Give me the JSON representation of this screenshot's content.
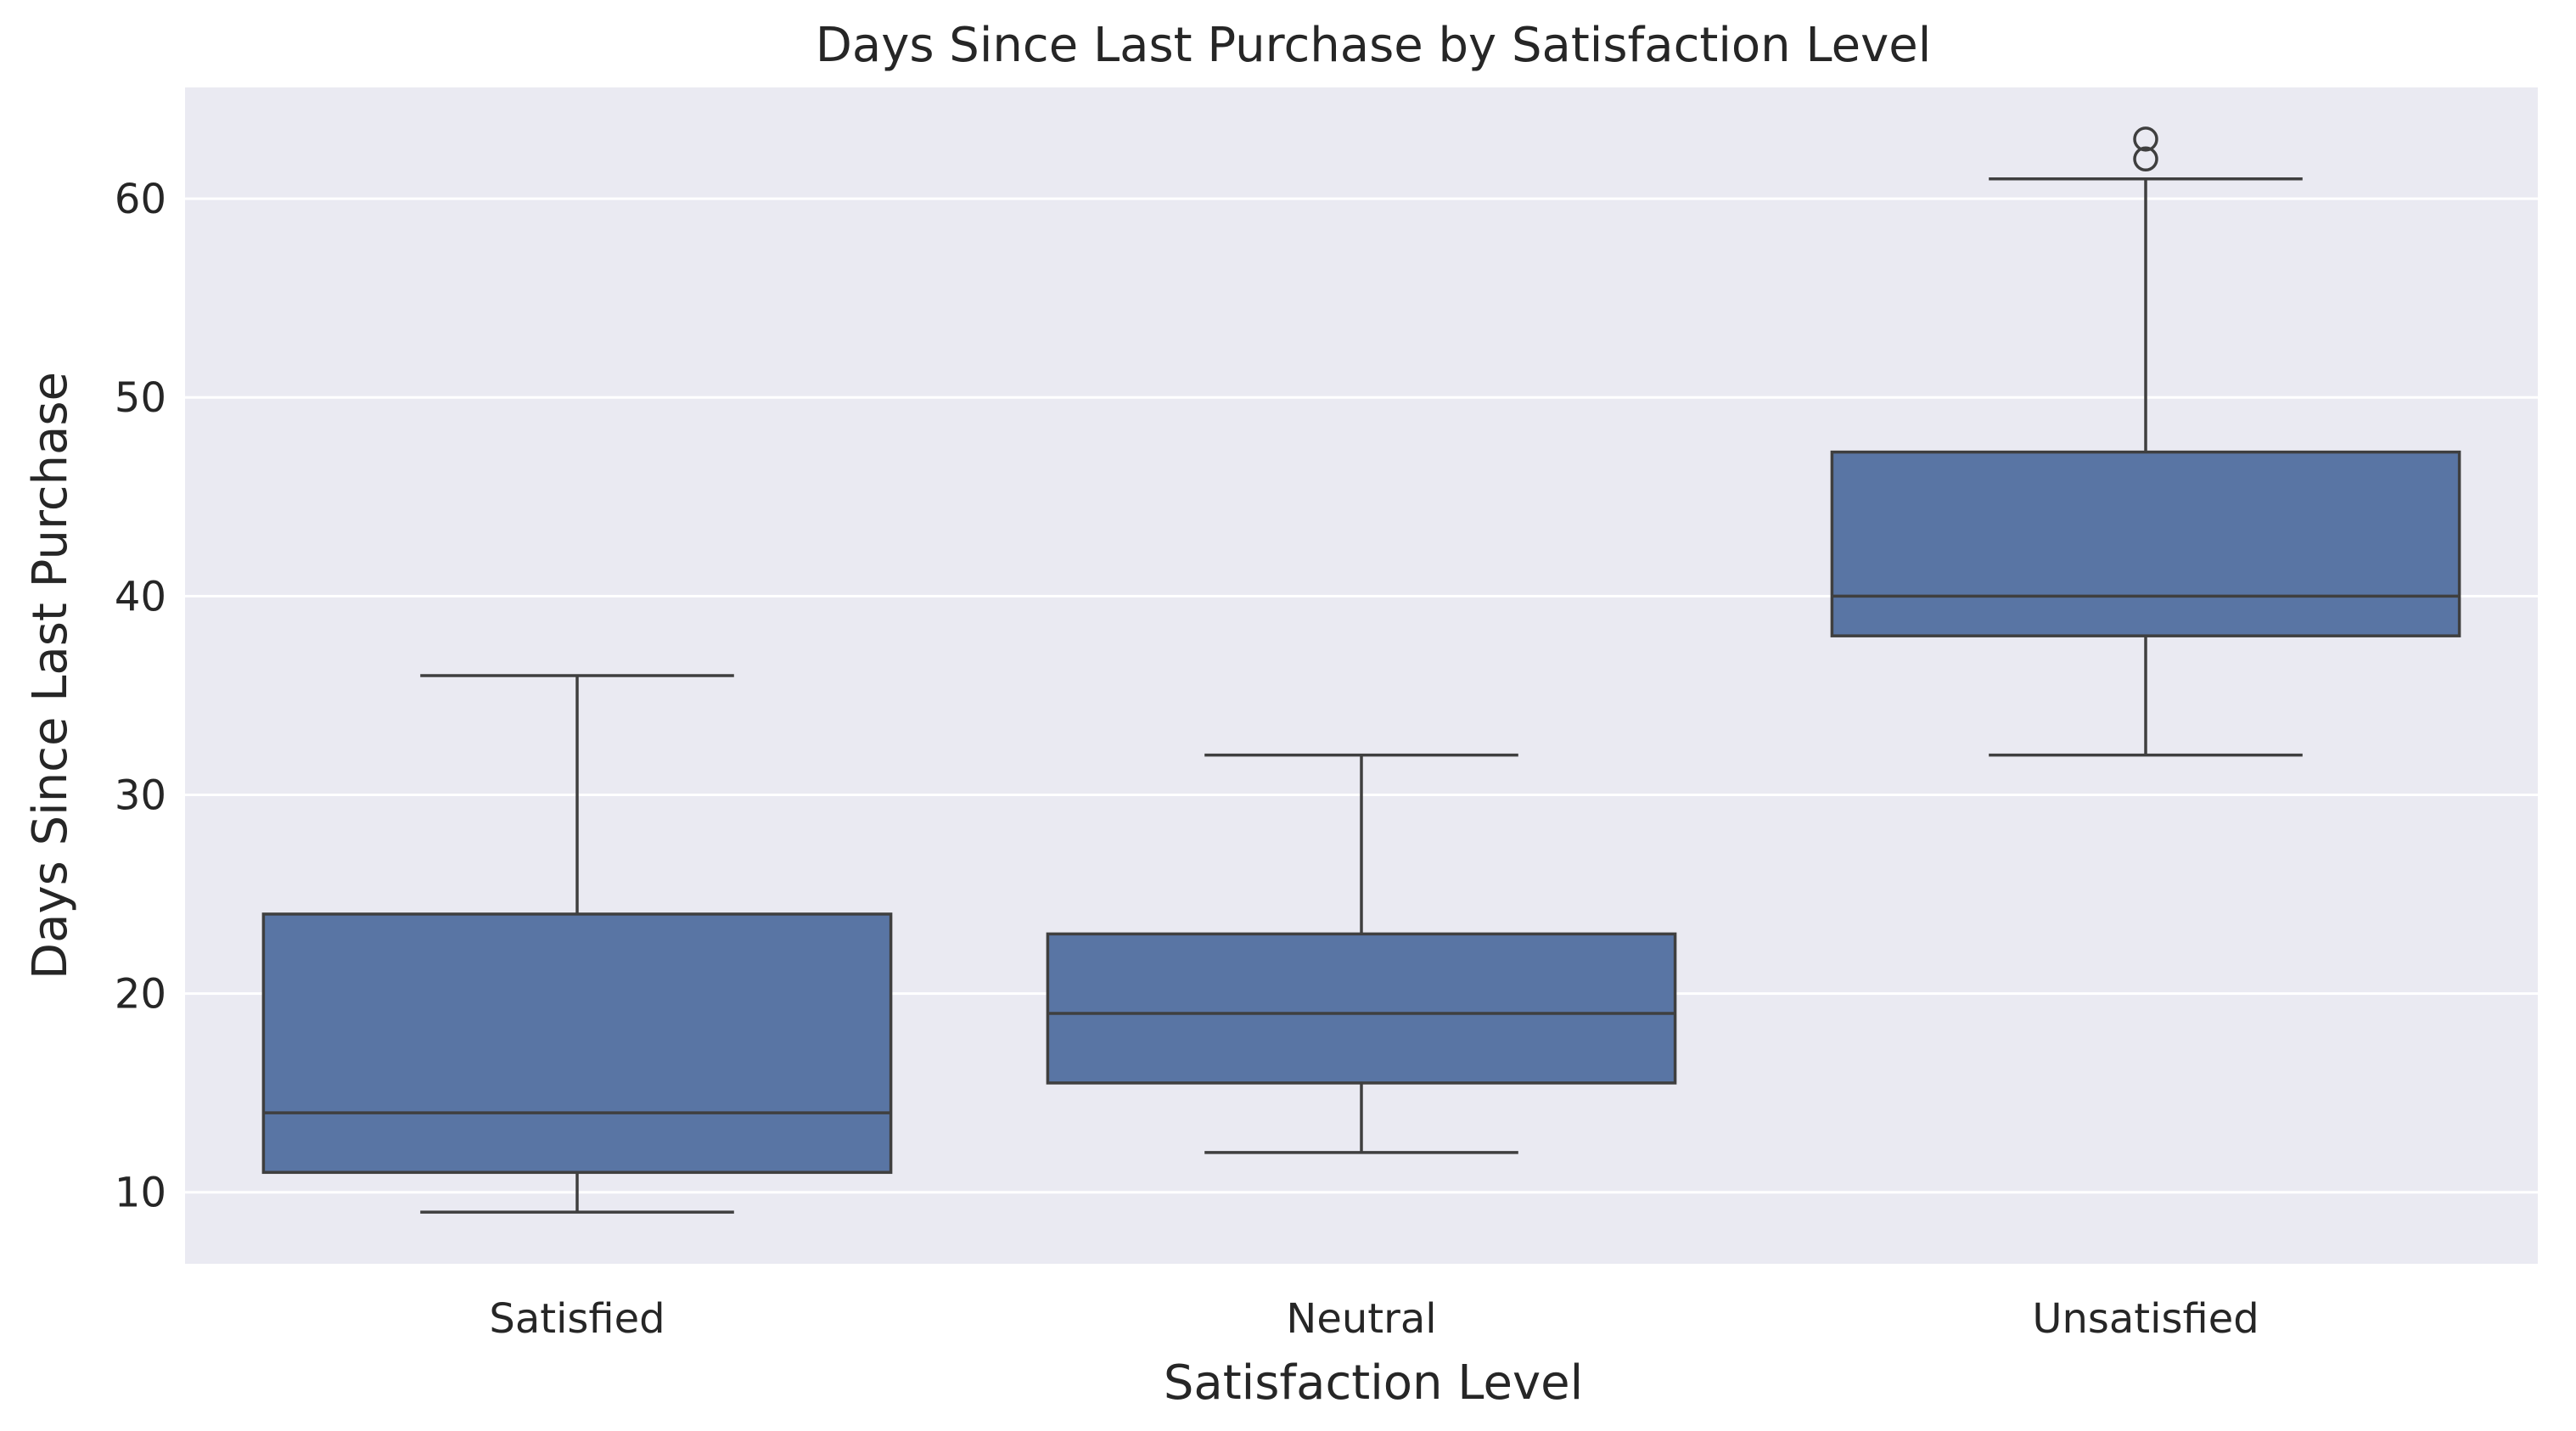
{
  "chart_data": {
    "type": "box",
    "title": "Days Since Last Purchase by Satisfaction Level",
    "xlabel": "Satisfaction Level",
    "ylabel": "Days Since Last Purchase",
    "categories": [
      "Satisfied",
      "Neutral",
      "Unsatisfied"
    ],
    "ylim": [
      6.4,
      65.6
    ],
    "yticks": [
      10,
      20,
      30,
      40,
      50,
      60
    ],
    "grid": true,
    "boxes": [
      {
        "category": "Satisfied",
        "whisker_low": 9,
        "q1": 11,
        "median": 14,
        "q3": 24,
        "whisker_high": 36,
        "outliers": []
      },
      {
        "category": "Neutral",
        "whisker_low": 12,
        "q1": 15.5,
        "median": 19,
        "q3": 23,
        "whisker_high": 32,
        "outliers": []
      },
      {
        "category": "Unsatisfied",
        "whisker_low": 32,
        "q1": 38,
        "median": 40,
        "q3": 47.25,
        "whisker_high": 61,
        "outliers": [
          62,
          63
        ]
      }
    ],
    "colors": {
      "box_fill": "#5975a4",
      "line": "#3f3f3f",
      "plot_background": "#eaeaf2",
      "grid": "#ffffff",
      "text": "#262626"
    }
  }
}
